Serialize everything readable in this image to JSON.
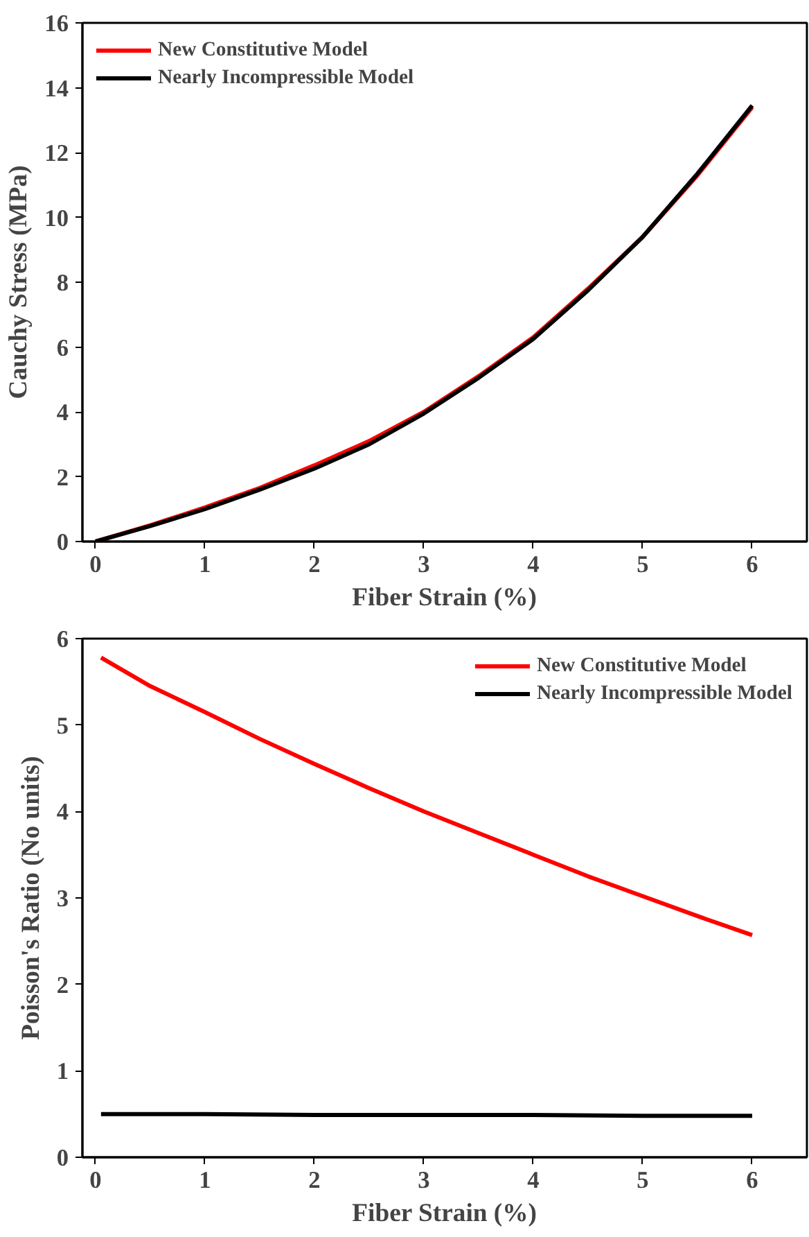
{
  "chart_data": [
    {
      "type": "line",
      "xlabel": "Fiber Strain (%)",
      "ylabel": "Cauchy Stress (MPa)",
      "xlim": [
        -0.12,
        6.5
      ],
      "ylim": [
        0,
        16
      ],
      "xticks": [
        0,
        1,
        2,
        3,
        4,
        5,
        6
      ],
      "yticks": [
        0,
        2,
        4,
        6,
        8,
        10,
        12,
        14,
        16
      ],
      "grid": false,
      "legend": "top left",
      "line_style": "solid",
      "series": [
        {
          "name": "New Constitutive Model",
          "color": "#ff0000",
          "x": [
            0,
            0.5,
            1,
            1.5,
            2,
            2.5,
            3,
            3.5,
            4,
            4.5,
            5,
            5.5,
            6
          ],
          "values": [
            0,
            0.5,
            1.05,
            1.65,
            2.35,
            3.1,
            4.0,
            5.1,
            6.3,
            7.8,
            9.4,
            11.3,
            13.4
          ]
        },
        {
          "name": "Nearly Incompressible Model",
          "color": "#000000",
          "x": [
            0,
            0.5,
            1,
            1.5,
            2,
            2.5,
            3,
            3.5,
            4,
            4.5,
            5,
            5.5,
            6
          ],
          "values": [
            0,
            0.48,
            1.0,
            1.6,
            2.25,
            3.0,
            3.95,
            5.05,
            6.25,
            7.75,
            9.4,
            11.35,
            13.45
          ]
        }
      ]
    },
    {
      "type": "line",
      "xlabel": "Fiber Strain (%)",
      "ylabel": "Poisson's Ratio (No units)",
      "xlim": [
        -0.12,
        6.5
      ],
      "ylim": [
        0,
        6
      ],
      "xticks": [
        0,
        1,
        2,
        3,
        4,
        5,
        6
      ],
      "yticks": [
        0,
        1,
        2,
        3,
        4,
        5,
        6
      ],
      "grid": false,
      "legend": "top right",
      "line_style": "solid",
      "series": [
        {
          "name": "New Constitutive Model",
          "color": "#ff0000",
          "x": [
            0.05,
            0.5,
            1,
            1.5,
            2,
            2.5,
            3,
            3.5,
            4,
            4.5,
            5,
            5.5,
            6
          ],
          "values": [
            5.78,
            5.45,
            5.15,
            4.84,
            4.55,
            4.27,
            4.0,
            3.75,
            3.5,
            3.25,
            3.02,
            2.79,
            2.57
          ]
        },
        {
          "name": "Nearly Incompressible Model",
          "color": "#000000",
          "x": [
            0.05,
            1,
            2,
            3,
            4,
            5,
            6
          ],
          "values": [
            0.5,
            0.5,
            0.49,
            0.49,
            0.49,
            0.48,
            0.48
          ]
        }
      ]
    }
  ]
}
